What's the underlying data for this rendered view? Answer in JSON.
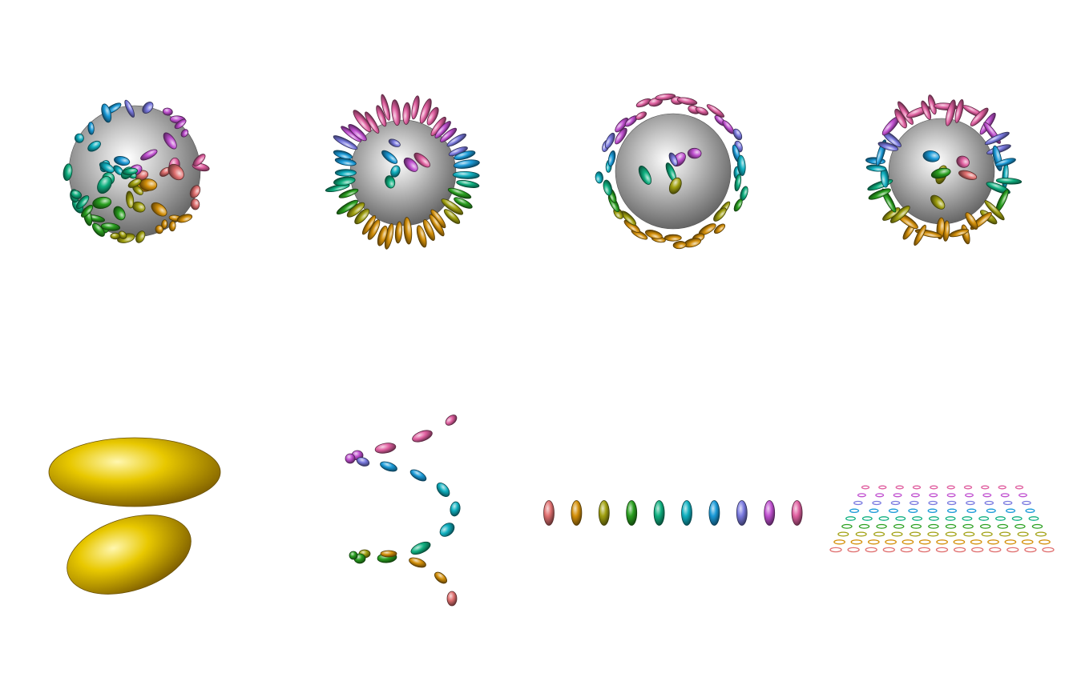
{
  "figure": {
    "background": "#ffffff",
    "panels": [
      {
        "name": "sphere-dense-random",
        "kind": "sphere-with-ellipsoids",
        "count": 60
      },
      {
        "name": "sphere-radial-ring",
        "kind": "sphere-with-ellipsoids",
        "count": 44
      },
      {
        "name": "sphere-tangential-ring",
        "kind": "sphere-with-ellipsoids",
        "count": 44
      },
      {
        "name": "sphere-mixed-ring",
        "kind": "sphere-with-ellipsoids",
        "count": 44
      },
      {
        "name": "two-gold-ellipsoids",
        "kind": "ellipsoid-pair",
        "count": 2
      },
      {
        "name": "chevron-ellipsoids",
        "kind": "ellipsoid-path",
        "count": 20
      },
      {
        "name": "ellipsoid-row",
        "kind": "ellipsoid-row",
        "count": 10
      },
      {
        "name": "ellipsoid-grid",
        "kind": "ellipsoid-grid",
        "rows": 9,
        "cols": 13
      }
    ],
    "palette": [
      "#e07070",
      "#d4900a",
      "#a0a010",
      "#2aa020",
      "#10b080",
      "#10b0c0",
      "#1a9ad8",
      "#7a7ae0",
      "#c050d0",
      "#e060a0"
    ],
    "sphere_color": "#a8a8a8",
    "gold_color": "#e8c800"
  }
}
